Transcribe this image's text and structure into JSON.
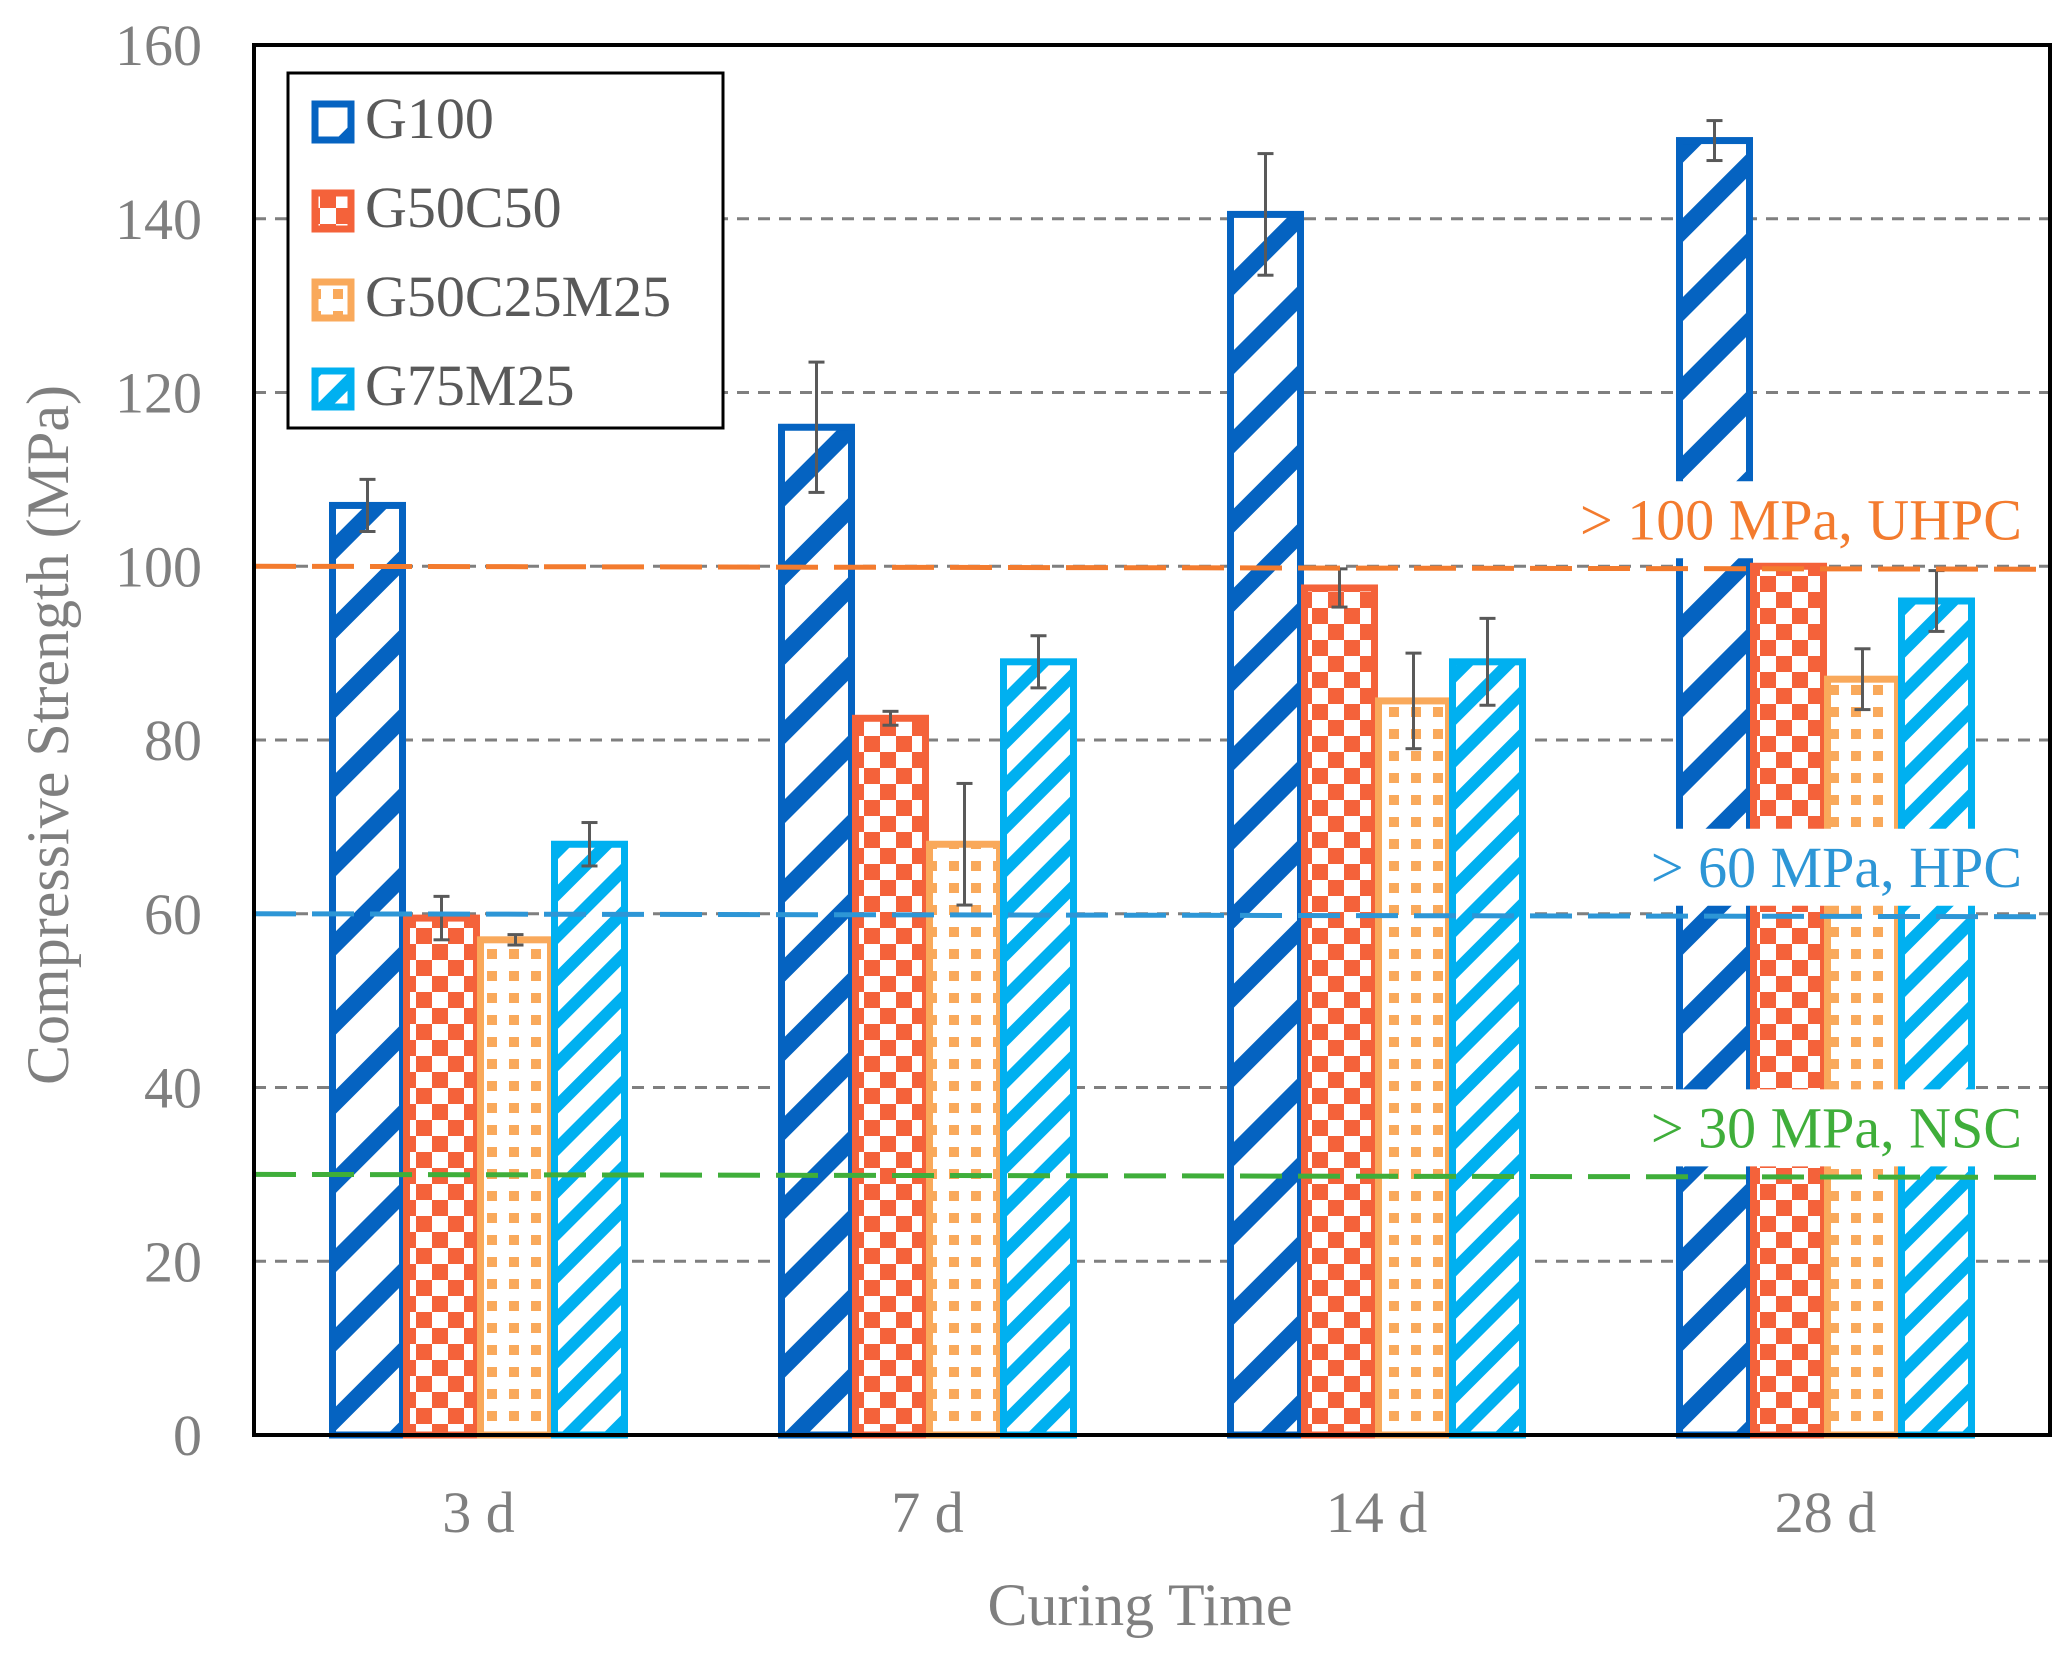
{
  "chart_data": {
    "type": "bar",
    "title": "",
    "xlabel": "Curing Time",
    "ylabel": "Compressive Strength (MPa)",
    "ylim": [
      0,
      160
    ],
    "yticks": [
      0,
      20,
      40,
      60,
      80,
      100,
      120,
      140,
      160
    ],
    "grid": true,
    "categories": [
      "3 d",
      "7 d",
      "14 d",
      "28 d"
    ],
    "series": [
      {
        "name": "G100",
        "color": "#0563C1",
        "pattern": "wide-diagonal",
        "values": [
          107,
          116,
          140.5,
          149
        ],
        "errors": [
          3,
          7.5,
          7,
          2.3
        ]
      },
      {
        "name": "G50C50",
        "color": "#F4623A",
        "pattern": "checkerboard",
        "values": [
          59.5,
          82.5,
          97.5,
          100
        ],
        "errors": [
          2.5,
          0.8,
          2.2,
          0
        ]
      },
      {
        "name": "G50C25M25",
        "color": "#F9A95B",
        "pattern": "dotted-grid",
        "values": [
          57,
          68,
          84.5,
          87
        ],
        "errors": [
          0.6,
          7,
          5.5,
          3.5
        ]
      },
      {
        "name": "G75M25",
        "color": "#00B0F0",
        "pattern": "narrow-diagonal",
        "values": [
          68,
          89,
          89,
          96
        ],
        "errors": [
          2.5,
          3,
          5,
          3.5
        ]
      }
    ],
    "legend_position": "top-left",
    "reference_lines": [
      {
        "value": 100,
        "label": "> 100 MPa, UHPC",
        "color": "#F37B2E"
      },
      {
        "value": 60,
        "label": "> 60 MPa, HPC",
        "color": "#2D96D6"
      },
      {
        "value": 30,
        "label": "> 30 MPa, NSC",
        "color": "#3FAE3A"
      }
    ]
  }
}
